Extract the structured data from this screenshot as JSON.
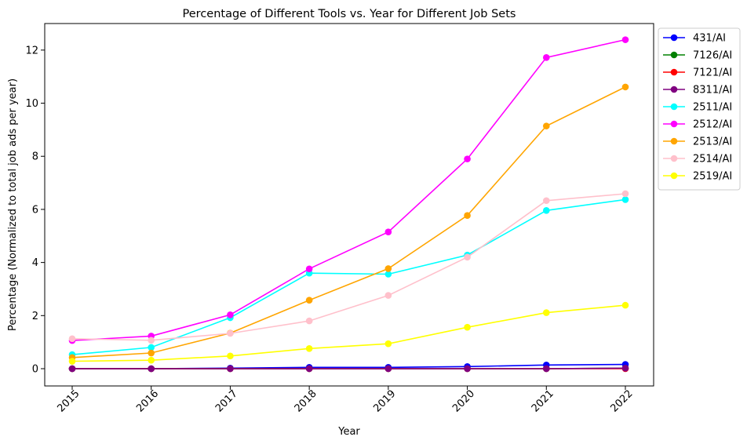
{
  "chart_data": {
    "type": "line",
    "title": "Percentage of Different Tools vs. Year for Different Job Sets",
    "xlabel": "Year",
    "ylabel": "Percentage (Normalized to total job ads per year)",
    "categories": [
      "2015",
      "2016",
      "2017",
      "2018",
      "2019",
      "2020",
      "2021",
      "2022"
    ],
    "ylim": [
      -0.65,
      13.0
    ],
    "yticks": [
      0,
      2,
      4,
      6,
      8,
      10,
      12
    ],
    "grid": false,
    "legend_position": "outside-top-right",
    "series": [
      {
        "name": "431/AI",
        "color": "#0000ff",
        "values": [
          0.0,
          0.0,
          0.02,
          0.05,
          0.05,
          0.08,
          0.14,
          0.16
        ]
      },
      {
        "name": "7126/AI",
        "color": "#008000",
        "values": [
          0.0,
          0.0,
          0.0,
          0.0,
          0.0,
          0.0,
          0.0,
          0.02
        ]
      },
      {
        "name": "7121/AI",
        "color": "#ff0000",
        "values": [
          0.0,
          0.0,
          0.0,
          0.0,
          0.0,
          0.0,
          0.0,
          0.0
        ]
      },
      {
        "name": "8311/AI",
        "color": "#800080",
        "values": [
          0.0,
          0.0,
          0.0,
          0.0,
          0.0,
          0.0,
          0.0,
          0.02
        ]
      },
      {
        "name": "2511/AI",
        "color": "#00ffff",
        "values": [
          0.53,
          0.8,
          1.92,
          3.6,
          3.56,
          4.28,
          5.96,
          6.37
        ]
      },
      {
        "name": "2512/AI",
        "color": "#ff00ff",
        "values": [
          1.06,
          1.23,
          2.03,
          3.76,
          5.15,
          7.9,
          11.72,
          12.39
        ]
      },
      {
        "name": "2513/AI",
        "color": "#ffa500",
        "values": [
          0.42,
          0.59,
          1.34,
          2.58,
          3.77,
          5.77,
          9.14,
          10.61
        ]
      },
      {
        "name": "2514/AI",
        "color": "#ffc0cb",
        "values": [
          1.13,
          1.07,
          1.33,
          1.8,
          2.76,
          4.2,
          6.33,
          6.59
        ]
      },
      {
        "name": "2519/AI",
        "color": "#ffff00",
        "values": [
          0.28,
          0.32,
          0.48,
          0.76,
          0.94,
          1.56,
          2.11,
          2.39
        ]
      }
    ]
  }
}
